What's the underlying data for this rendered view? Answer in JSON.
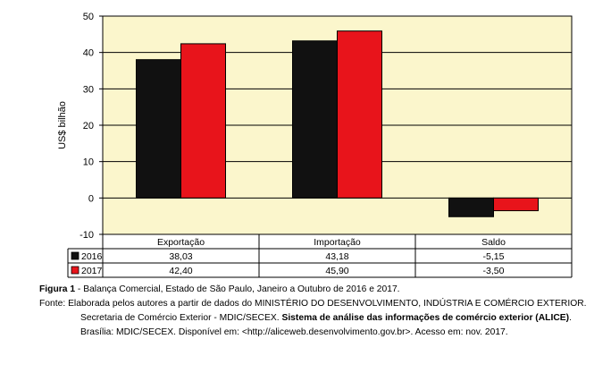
{
  "chart_data": {
    "type": "bar",
    "title": "",
    "xlabel": "",
    "ylabel": "US$ bilhão",
    "ylim": [
      -10,
      50
    ],
    "yticks": [
      -10,
      0,
      10,
      20,
      30,
      40,
      50
    ],
    "grid": true,
    "legend": "table-below",
    "categories": [
      "Exportação",
      "Importação",
      "Saldo"
    ],
    "series": [
      {
        "name": "2016",
        "values": [
          38.03,
          43.18,
          -5.15
        ],
        "labels": [
          "38,03",
          "43,18",
          "-5,15"
        ],
        "color": "#111111"
      },
      {
        "name": "2017",
        "values": [
          42.4,
          45.9,
          -3.5
        ],
        "labels": [
          "42,40",
          "45,90",
          "-3,50"
        ],
        "color": "#e8141b"
      }
    ],
    "colors": {
      "plot_background": "#fbf6cc",
      "grid": "#000000"
    }
  },
  "caption": {
    "figure_label": "Figura 1",
    "figure_text": " - Balança Comercial, Estado de São Paulo, Janeiro a Outubro de 2016 e 2017.",
    "source_label": "Fonte: ",
    "source_text_1": "Elaborada pelos autores a partir de dados do MINISTÉRIO DO DESENVOLVIMENTO, INDÚSTRIA E COMÉRCIO EXTERIOR.",
    "source_text_2a": "Secretaria de Comércio Exterior - MDIC/SECEX. ",
    "source_text_2b": "Sistema de análise das informações de comércio exterior (ALICE)",
    "source_text_2c": ".",
    "source_text_3": "Brasília: MDIC/SECEX. Disponível em: <http://aliceweb.desenvolvimento.gov.br>. Acesso em: nov. 2017."
  }
}
